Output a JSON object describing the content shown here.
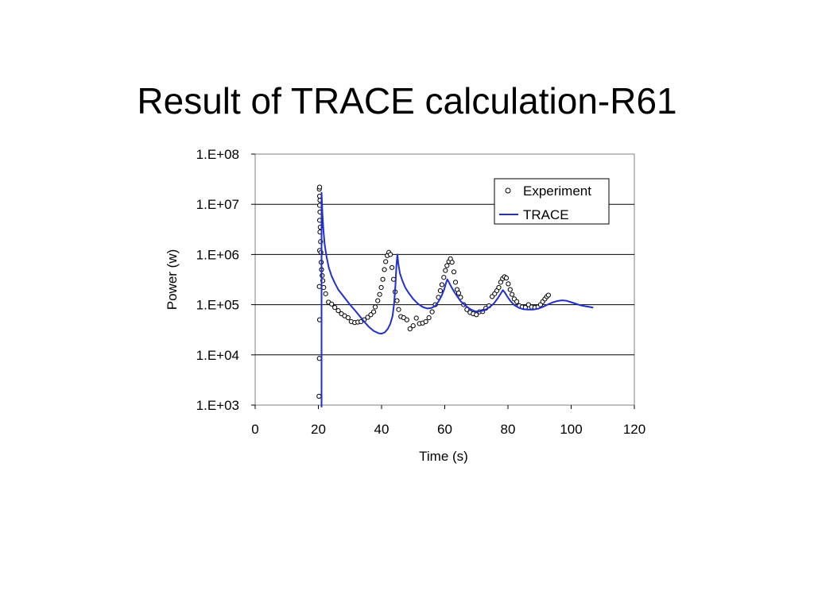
{
  "slide": {
    "title": "Result of TRACE calculation-R61"
  },
  "chart_data": {
    "type": "scatter",
    "title": "",
    "xlabel": "Time (s)",
    "ylabel": "Power (w)",
    "xlim": [
      0,
      120
    ],
    "ylim": [
      1000,
      100000000
    ],
    "yscale": "log",
    "x_ticks": [
      0,
      20,
      40,
      60,
      80,
      100,
      120
    ],
    "x_tick_labels": [
      "0",
      "20",
      "40",
      "60",
      "80",
      "100",
      "120"
    ],
    "y_ticks": [
      1000,
      10000,
      100000,
      1000000,
      10000000,
      100000000
    ],
    "y_tick_labels": [
      "1.E+03",
      "1.E+04",
      "1.E+05",
      "1.E+06",
      "1.E+07",
      "1.E+08"
    ],
    "grid": "horizontal major gridlines",
    "legend_position": "top-right",
    "colors": {
      "experiment_marker": "#000000",
      "trace_line": "#1f2fd0",
      "grid": "#000000",
      "frame": "#808080"
    },
    "series": [
      {
        "name": "Experiment",
        "kind": "scatter",
        "marker": "open-circle",
        "points": [
          [
            20.2,
            1500
          ],
          [
            20.3,
            8500
          ],
          [
            20.4,
            50000
          ],
          [
            20.3,
            230000
          ],
          [
            20.4,
            1200000
          ],
          [
            20.5,
            2800000
          ],
          [
            20.4,
            4800000
          ],
          [
            20.5,
            7000000
          ],
          [
            20.4,
            9500000
          ],
          [
            20.5,
            12000000
          ],
          [
            20.4,
            14500000
          ],
          [
            20.3,
            20000000
          ],
          [
            20.4,
            22000000
          ],
          [
            20.6,
            3500000
          ],
          [
            20.7,
            1800000
          ],
          [
            20.8,
            1100000
          ],
          [
            20.9,
            700000
          ],
          [
            21.0,
            500000
          ],
          [
            21.2,
            380000
          ],
          [
            21.4,
            300000
          ],
          [
            21.7,
            220000
          ],
          [
            22.3,
            165000
          ],
          [
            23.2,
            112000
          ],
          [
            24.2,
            103000
          ],
          [
            25.2,
            88000
          ],
          [
            26.3,
            76000
          ],
          [
            27.3,
            66000
          ],
          [
            28.3,
            60000
          ],
          [
            29.4,
            55000
          ],
          [
            30.4,
            46000
          ],
          [
            31.5,
            44000
          ],
          [
            32.5,
            45000
          ],
          [
            33.5,
            46000
          ],
          [
            34.5,
            50000
          ],
          [
            35.6,
            56000
          ],
          [
            36.6,
            63000
          ],
          [
            37.5,
            72000
          ],
          [
            38.0,
            90000
          ],
          [
            38.8,
            120000
          ],
          [
            39.4,
            160000
          ],
          [
            39.9,
            220000
          ],
          [
            40.4,
            320000
          ],
          [
            40.9,
            500000
          ],
          [
            41.3,
            720000
          ],
          [
            41.8,
            950000
          ],
          [
            42.3,
            1100000
          ],
          [
            42.8,
            1000000
          ],
          [
            43.3,
            550000
          ],
          [
            43.8,
            320000
          ],
          [
            44.3,
            180000
          ],
          [
            44.9,
            120000
          ],
          [
            45.4,
            80000
          ],
          [
            46.1,
            58000
          ],
          [
            47.0,
            55000
          ],
          [
            48.0,
            50000
          ],
          [
            49.0,
            33000
          ],
          [
            50.0,
            38000
          ],
          [
            51.0,
            54000
          ],
          [
            52.0,
            42000
          ],
          [
            53.0,
            43000
          ],
          [
            54.0,
            46000
          ],
          [
            55.0,
            55000
          ],
          [
            56.0,
            72000
          ],
          [
            57.0,
            100000
          ],
          [
            58.0,
            140000
          ],
          [
            58.6,
            190000
          ],
          [
            59.1,
            250000
          ],
          [
            59.7,
            350000
          ],
          [
            60.2,
            480000
          ],
          [
            60.7,
            600000
          ],
          [
            61.3,
            720000
          ],
          [
            61.8,
            820000
          ],
          [
            62.3,
            700000
          ],
          [
            62.9,
            450000
          ],
          [
            63.4,
            280000
          ],
          [
            63.9,
            200000
          ],
          [
            64.4,
            170000
          ],
          [
            65.0,
            140000
          ],
          [
            66.0,
            100000
          ],
          [
            67.0,
            80000
          ],
          [
            68.0,
            70000
          ],
          [
            69.0,
            66000
          ],
          [
            70.0,
            63000
          ],
          [
            71.0,
            72000
          ],
          [
            72.0,
            73000
          ],
          [
            73.0,
            85000
          ],
          [
            74.0,
            95000
          ],
          [
            75.0,
            145000
          ],
          [
            75.8,
            165000
          ],
          [
            76.5,
            190000
          ],
          [
            77.1,
            220000
          ],
          [
            77.7,
            280000
          ],
          [
            78.3,
            330000
          ],
          [
            78.9,
            360000
          ],
          [
            79.5,
            340000
          ],
          [
            80.1,
            260000
          ],
          [
            80.7,
            200000
          ],
          [
            81.3,
            160000
          ],
          [
            82.0,
            130000
          ],
          [
            82.8,
            115000
          ],
          [
            83.6,
            95000
          ],
          [
            84.5,
            90000
          ],
          [
            85.5,
            88000
          ],
          [
            86.5,
            100000
          ],
          [
            87.5,
            90000
          ],
          [
            88.5,
            88000
          ],
          [
            89.5,
            90000
          ],
          [
            90.3,
            100000
          ],
          [
            91.0,
            115000
          ],
          [
            91.7,
            130000
          ],
          [
            92.3,
            145000
          ],
          [
            92.8,
            155000
          ]
        ]
      },
      {
        "name": "TRACE",
        "kind": "line",
        "points": [
          [
            21.0,
            900
          ],
          [
            21.0,
            17000000
          ],
          [
            21.1,
            12000000
          ],
          [
            21.3,
            6000000
          ],
          [
            21.6,
            3000000
          ],
          [
            22.0,
            1600000
          ],
          [
            22.6,
            900000
          ],
          [
            23.3,
            550000
          ],
          [
            24.2,
            370000
          ],
          [
            25.2,
            270000
          ],
          [
            26.3,
            200000
          ],
          [
            27.5,
            160000
          ],
          [
            28.8,
            125000
          ],
          [
            30.0,
            100000
          ],
          [
            31.5,
            78000
          ],
          [
            33.0,
            60000
          ],
          [
            34.5,
            46000
          ],
          [
            36.0,
            36000
          ],
          [
            37.5,
            30000
          ],
          [
            39.0,
            27000
          ],
          [
            40.0,
            26500
          ],
          [
            41.0,
            28000
          ],
          [
            42.0,
            33000
          ],
          [
            42.8,
            42000
          ],
          [
            43.5,
            60000
          ],
          [
            44.0,
            110000
          ],
          [
            44.4,
            250000
          ],
          [
            44.7,
            600000
          ],
          [
            45.0,
            1000000
          ],
          [
            45.3,
            650000
          ],
          [
            45.8,
            420000
          ],
          [
            46.6,
            300000
          ],
          [
            47.5,
            220000
          ],
          [
            48.6,
            170000
          ],
          [
            50.0,
            130000
          ],
          [
            51.5,
            105000
          ],
          [
            53.0,
            90000
          ],
          [
            54.5,
            84000
          ],
          [
            55.8,
            86000
          ],
          [
            57.0,
            95000
          ],
          [
            58.0,
            115000
          ],
          [
            59.0,
            150000
          ],
          [
            59.8,
            200000
          ],
          [
            60.4,
            270000
          ],
          [
            60.8,
            320000
          ],
          [
            61.3,
            280000
          ],
          [
            62.0,
            230000
          ],
          [
            63.0,
            180000
          ],
          [
            64.0,
            145000
          ],
          [
            65.0,
            118000
          ],
          [
            66.5,
            96000
          ],
          [
            68.0,
            82000
          ],
          [
            69.5,
            74000
          ],
          [
            71.0,
            73000
          ],
          [
            72.5,
            77000
          ],
          [
            74.0,
            88000
          ],
          [
            75.5,
            105000
          ],
          [
            76.8,
            135000
          ],
          [
            77.8,
            170000
          ],
          [
            78.4,
            195000
          ],
          [
            79.0,
            175000
          ],
          [
            79.8,
            145000
          ],
          [
            80.8,
            118000
          ],
          [
            82.0,
            98000
          ],
          [
            83.5,
            86000
          ],
          [
            85.0,
            81000
          ],
          [
            86.5,
            80000
          ],
          [
            88.0,
            80000
          ],
          [
            89.5,
            83000
          ],
          [
            91.0,
            90000
          ],
          [
            92.5,
            100000
          ],
          [
            94.0,
            110000
          ],
          [
            95.5,
            118000
          ],
          [
            97.0,
            122000
          ],
          [
            98.5,
            120000
          ],
          [
            100.0,
            112000
          ],
          [
            101.5,
            104000
          ],
          [
            103.0,
            97000
          ],
          [
            104.5,
            93000
          ],
          [
            106.0,
            90000
          ],
          [
            107.0,
            87000
          ]
        ]
      }
    ]
  }
}
